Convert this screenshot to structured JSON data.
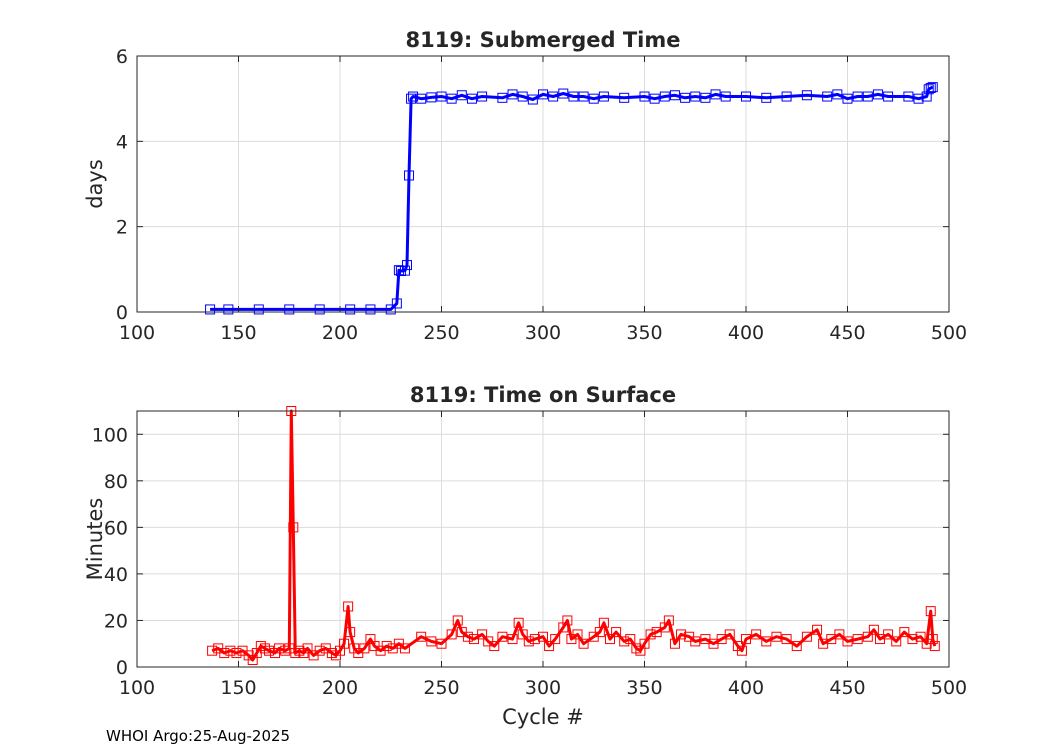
{
  "footer": "WHOI Argo:25-Aug-2025",
  "chart_data": [
    {
      "type": "line",
      "title": "8119: Submerged Time",
      "xlabel": "",
      "ylabel": "days",
      "xlim": [
        100,
        500
      ],
      "ylim": [
        0,
        6
      ],
      "xticks": [
        100,
        150,
        200,
        250,
        300,
        350,
        400,
        450,
        500
      ],
      "yticks": [
        0,
        2,
        4,
        6
      ],
      "grid": true,
      "color": "#0000ff",
      "marker": "square",
      "series": [
        {
          "name": "Submerged Time",
          "points": [
            [
              136,
              0.06
            ],
            [
              145,
              0.06
            ],
            [
              160,
              0.06
            ],
            [
              175,
              0.06
            ],
            [
              190,
              0.06
            ],
            [
              205,
              0.06
            ],
            [
              215,
              0.06
            ],
            [
              225,
              0.06
            ],
            [
              228,
              0.2
            ],
            [
              229,
              0.98
            ],
            [
              230,
              0.96
            ],
            [
              232,
              0.97
            ],
            [
              233,
              1.1
            ],
            [
              234,
              3.2
            ],
            [
              235,
              5.0
            ],
            [
              236,
              5.05
            ],
            [
              240,
              5.0
            ],
            [
              245,
              5.03
            ],
            [
              250,
              5.05
            ],
            [
              255,
              5.0
            ],
            [
              260,
              5.08
            ],
            [
              265,
              5.0
            ],
            [
              270,
              5.05
            ],
            [
              280,
              5.02
            ],
            [
              285,
              5.1
            ],
            [
              290,
              5.05
            ],
            [
              295,
              4.98
            ],
            [
              300,
              5.1
            ],
            [
              305,
              5.05
            ],
            [
              310,
              5.12
            ],
            [
              315,
              5.05
            ],
            [
              320,
              5.05
            ],
            [
              325,
              5.0
            ],
            [
              330,
              5.05
            ],
            [
              340,
              5.02
            ],
            [
              350,
              5.05
            ],
            [
              355,
              5.0
            ],
            [
              360,
              5.05
            ],
            [
              365,
              5.08
            ],
            [
              370,
              5.02
            ],
            [
              375,
              5.05
            ],
            [
              380,
              5.02
            ],
            [
              385,
              5.1
            ],
            [
              390,
              5.05
            ],
            [
              400,
              5.05
            ],
            [
              410,
              5.02
            ],
            [
              420,
              5.05
            ],
            [
              430,
              5.08
            ],
            [
              440,
              5.05
            ],
            [
              445,
              5.1
            ],
            [
              450,
              5.0
            ],
            [
              455,
              5.05
            ],
            [
              460,
              5.05
            ],
            [
              465,
              5.1
            ],
            [
              470,
              5.05
            ],
            [
              480,
              5.05
            ],
            [
              485,
              5.0
            ],
            [
              489,
              5.05
            ],
            [
              490,
              5.22
            ],
            [
              491,
              5.25
            ],
            [
              492,
              5.27
            ]
          ]
        }
      ]
    },
    {
      "type": "line",
      "title": "8119: Time on Surface",
      "xlabel": "Cycle #",
      "ylabel": "Minutes",
      "xlim": [
        100,
        500
      ],
      "ylim": [
        0,
        110
      ],
      "xticks": [
        100,
        150,
        200,
        250,
        300,
        350,
        400,
        450,
        500
      ],
      "yticks": [
        0,
        20,
        40,
        60,
        80,
        100
      ],
      "grid": true,
      "color": "#ff0000",
      "marker": "square",
      "series": [
        {
          "name": "Time on Surface",
          "points": [
            [
              137,
              7
            ],
            [
              140,
              8
            ],
            [
              143,
              6
            ],
            [
              146,
              7
            ],
            [
              149,
              6
            ],
            [
              152,
              7
            ],
            [
              155,
              5
            ],
            [
              157,
              3
            ],
            [
              159,
              6
            ],
            [
              161,
              9
            ],
            [
              163,
              8
            ],
            [
              165,
              7
            ],
            [
              168,
              6
            ],
            [
              170,
              8
            ],
            [
              173,
              7
            ],
            [
              175,
              8
            ],
            [
              176,
              110
            ],
            [
              177,
              60
            ],
            [
              178,
              6
            ],
            [
              180,
              7
            ],
            [
              182,
              6
            ],
            [
              184,
              8
            ],
            [
              187,
              5
            ],
            [
              190,
              7
            ],
            [
              193,
              8
            ],
            [
              196,
              6
            ],
            [
              198,
              5
            ],
            [
              200,
              7
            ],
            [
              202,
              10
            ],
            [
              204,
              26
            ],
            [
              205,
              15
            ],
            [
              207,
              8
            ],
            [
              209,
              6
            ],
            [
              212,
              8
            ],
            [
              215,
              12
            ],
            [
              217,
              9
            ],
            [
              220,
              7
            ],
            [
              223,
              9
            ],
            [
              226,
              8
            ],
            [
              229,
              10
            ],
            [
              232,
              8
            ],
            [
              240,
              13
            ],
            [
              245,
              11
            ],
            [
              250,
              10
            ],
            [
              255,
              14
            ],
            [
              258,
              20
            ],
            [
              260,
              15
            ],
            [
              263,
              13
            ],
            [
              266,
              12
            ],
            [
              270,
              14
            ],
            [
              273,
              11
            ],
            [
              276,
              9
            ],
            [
              280,
              13
            ],
            [
              285,
              12
            ],
            [
              288,
              19
            ],
            [
              290,
              14
            ],
            [
              293,
              11
            ],
            [
              296,
              12
            ],
            [
              300,
              13
            ],
            [
              303,
              9
            ],
            [
              306,
              12
            ],
            [
              310,
              17
            ],
            [
              312,
              20
            ],
            [
              314,
              12
            ],
            [
              317,
              14
            ],
            [
              320,
              10
            ],
            [
              325,
              13
            ],
            [
              328,
              15
            ],
            [
              330,
              19
            ],
            [
              333,
              12
            ],
            [
              336,
              15
            ],
            [
              340,
              11
            ],
            [
              343,
              12
            ],
            [
              346,
              8
            ],
            [
              348,
              7
            ],
            [
              350,
              10
            ],
            [
              353,
              14
            ],
            [
              356,
              15
            ],
            [
              360,
              17
            ],
            [
              362,
              20
            ],
            [
              365,
              10
            ],
            [
              368,
              14
            ],
            [
              372,
              13
            ],
            [
              375,
              11
            ],
            [
              380,
              12
            ],
            [
              384,
              10
            ],
            [
              388,
              12
            ],
            [
              392,
              14
            ],
            [
              396,
              9
            ],
            [
              398,
              7
            ],
            [
              400,
              12
            ],
            [
              405,
              14
            ],
            [
              410,
              11
            ],
            [
              415,
              13
            ],
            [
              420,
              12
            ],
            [
              425,
              9
            ],
            [
              430,
              13
            ],
            [
              435,
              16
            ],
            [
              438,
              10
            ],
            [
              442,
              12
            ],
            [
              446,
              14
            ],
            [
              450,
              11
            ],
            [
              455,
              12
            ],
            [
              460,
              13
            ],
            [
              463,
              16
            ],
            [
              466,
              12
            ],
            [
              470,
              14
            ],
            [
              474,
              11
            ],
            [
              478,
              15
            ],
            [
              482,
              12
            ],
            [
              486,
              13
            ],
            [
              489,
              10
            ],
            [
              491,
              24
            ],
            [
              492,
              12
            ],
            [
              493,
              9
            ]
          ]
        }
      ]
    }
  ]
}
